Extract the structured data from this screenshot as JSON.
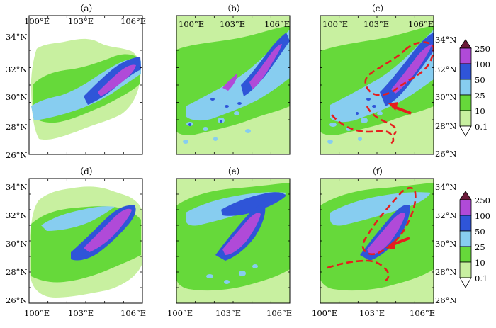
{
  "colors": {
    "c01": "#c8f0a0",
    "c10": "#66d93a",
    "c25": "#87cdf0",
    "c50": "#2f55d8",
    "c100": "#b04ad8",
    "c250": "#6b1a3a",
    "boundary": "#b8b8b8",
    "annotation": "#e61e1e",
    "frame": "#000000"
  },
  "panels": [
    {
      "id": "a",
      "label": "（a）",
      "masked": true,
      "pattern": "smooth",
      "annotated": false
    },
    {
      "id": "b",
      "label": "（b）",
      "masked": false,
      "pattern": "noisy",
      "annotated": false
    },
    {
      "id": "c",
      "label": "（c）",
      "masked": false,
      "pattern": "noisy",
      "annotated": true
    },
    {
      "id": "d",
      "label": "（d）",
      "masked": true,
      "pattern": "smooth",
      "annotated": false
    },
    {
      "id": "e",
      "label": "（e）",
      "masked": false,
      "pattern": "spread",
      "annotated": false
    },
    {
      "id": "f",
      "label": "（f）",
      "masked": false,
      "pattern": "spread",
      "annotated": true
    }
  ],
  "axes": {
    "x_ticks": [
      "100°E",
      "103°E",
      "106°E"
    ],
    "y_ticks": [
      "34°N",
      "32°N",
      "30°N",
      "28°N",
      "26°N"
    ]
  },
  "colorbar": {
    "labels": [
      "250",
      "100",
      "50",
      "25",
      "10",
      "0.1"
    ]
  }
}
